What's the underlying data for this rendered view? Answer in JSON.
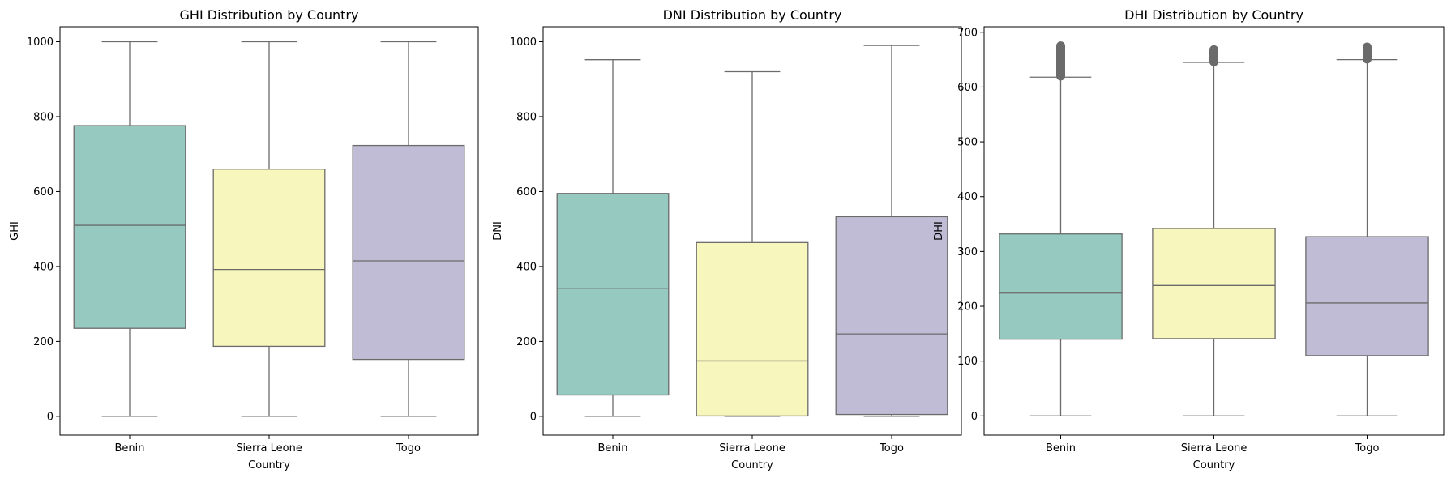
{
  "chart_data": [
    {
      "type": "box",
      "title": "GHI Distribution by Country",
      "xlabel": "Country",
      "ylabel": "GHI",
      "categories": [
        "Benin",
        "Sierra Leone",
        "Togo"
      ],
      "ylim": [
        -50,
        1040
      ],
      "yticks": [
        0,
        200,
        400,
        600,
        800,
        1000
      ],
      "boxes": [
        {
          "category": "Benin",
          "whislo": 0,
          "q1": 235,
          "median": 510,
          "q3": 776,
          "whishi": 1000,
          "fliers_range": null
        },
        {
          "category": "Sierra Leone",
          "whislo": 0,
          "q1": 187,
          "median": 392,
          "q3": 660,
          "whishi": 1000,
          "fliers_range": null
        },
        {
          "category": "Togo",
          "whislo": 0,
          "q1": 152,
          "median": 415,
          "q3": 723,
          "whishi": 1000,
          "fliers_range": null
        }
      ]
    },
    {
      "type": "box",
      "title": "DNI Distribution by Country",
      "xlabel": "Country",
      "ylabel": "DNI",
      "categories": [
        "Benin",
        "Sierra Leone",
        "Togo"
      ],
      "ylim": [
        -50,
        1040
      ],
      "yticks": [
        0,
        200,
        400,
        600,
        800,
        1000
      ],
      "boxes": [
        {
          "category": "Benin",
          "whislo": 0,
          "q1": 57,
          "median": 342,
          "q3": 595,
          "whishi": 952,
          "fliers_range": null
        },
        {
          "category": "Sierra Leone",
          "whislo": 0,
          "q1": 1,
          "median": 148,
          "q3": 464,
          "whishi": 920,
          "fliers_range": null
        },
        {
          "category": "Togo",
          "whislo": 0,
          "q1": 5,
          "median": 220,
          "q3": 533,
          "whishi": 990,
          "fliers_range": null
        }
      ]
    },
    {
      "type": "box",
      "title": "DHI Distribution by Country",
      "xlabel": "Country",
      "ylabel": "DHI",
      "categories": [
        "Benin",
        "Sierra Leone",
        "Togo"
      ],
      "ylim": [
        -35,
        710
      ],
      "yticks": [
        0,
        100,
        200,
        300,
        400,
        500,
        600,
        700
      ],
      "boxes": [
        {
          "category": "Benin",
          "whislo": 0,
          "q1": 140,
          "median": 224,
          "q3": 332,
          "whishi": 618,
          "fliers_range": [
            620,
            675
          ]
        },
        {
          "category": "Sierra Leone",
          "whislo": 0,
          "q1": 141,
          "median": 238,
          "q3": 342,
          "whishi": 645,
          "fliers_range": [
            646,
            668
          ]
        },
        {
          "category": "Togo",
          "whislo": 0,
          "q1": 110,
          "median": 206,
          "q3": 327,
          "whishi": 650,
          "fliers_range": [
            651,
            673
          ]
        }
      ]
    }
  ],
  "colors": {
    "box_fills": [
      "#96cac0",
      "#f7f6bd",
      "#c0bcd6"
    ],
    "lines": "#6b6b6b"
  }
}
